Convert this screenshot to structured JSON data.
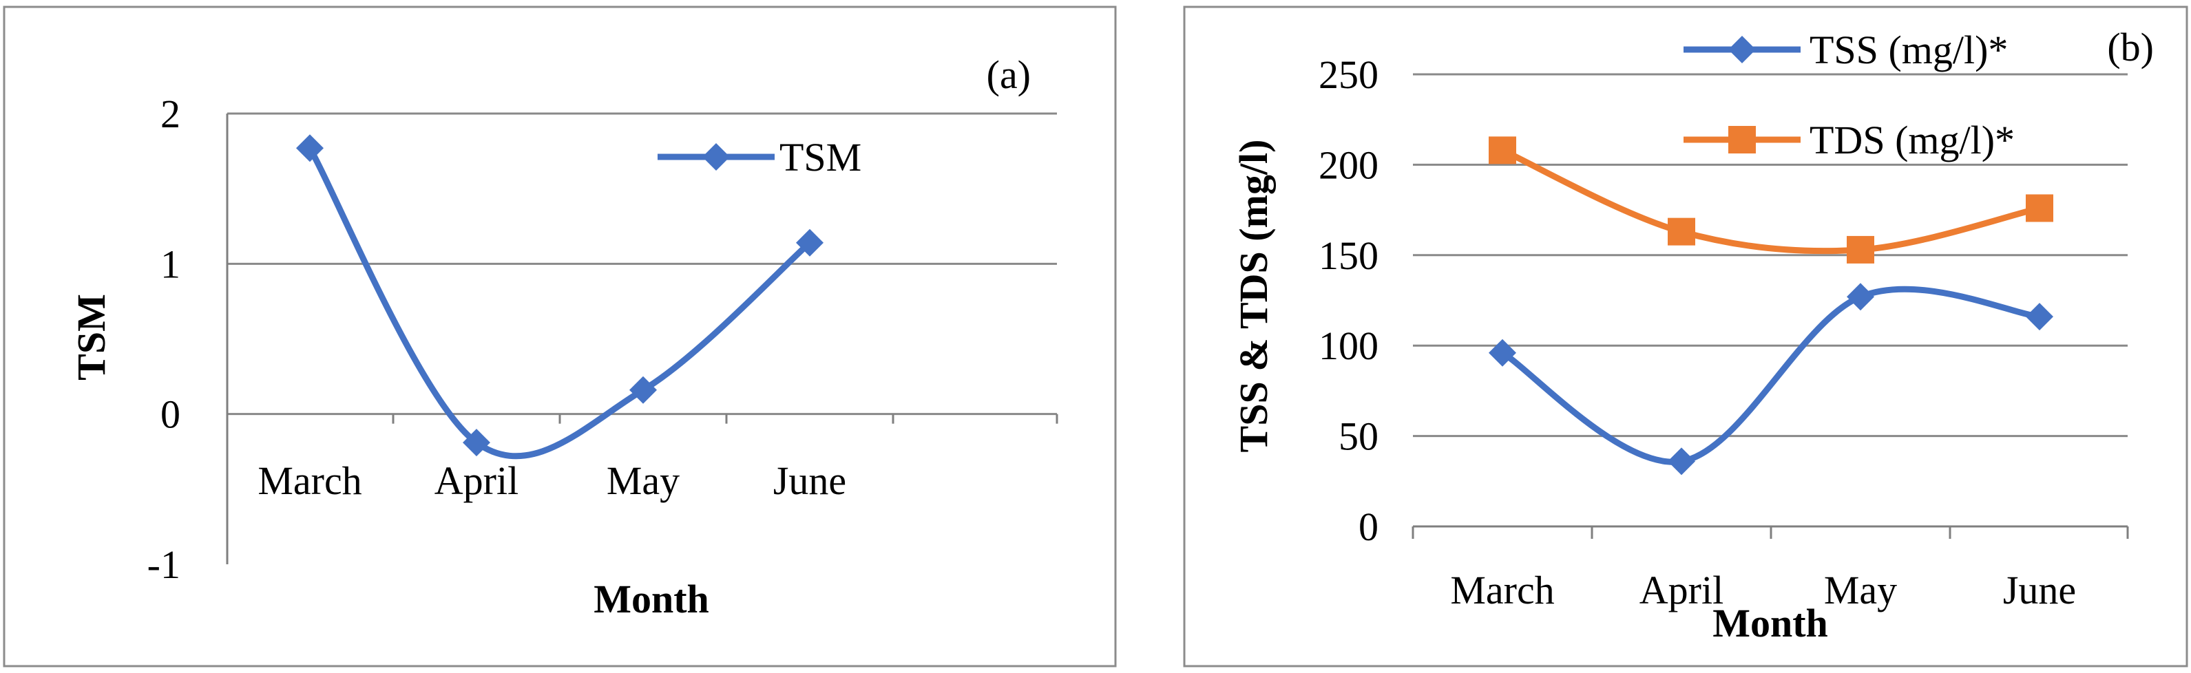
{
  "chart_data": [
    {
      "type": "line",
      "panel_label": "(a)",
      "xlabel": "Month",
      "ylabel": "TSM",
      "categories": [
        "March",
        "April",
        "May",
        "June"
      ],
      "ylim": [
        -1,
        2
      ],
      "yticks": [
        "-1",
        "0",
        "1",
        "2"
      ],
      "grid": true,
      "legend_position": "top-right",
      "series": [
        {
          "name": "TSM",
          "values": [
            1.77,
            -0.19,
            0.16,
            1.14
          ],
          "color": "#4472c4",
          "marker": "diamond"
        }
      ]
    },
    {
      "type": "line",
      "panel_label": "(b)",
      "xlabel": "Month",
      "ylabel": "TSS & TDS (mg/l)",
      "categories": [
        "March",
        "April",
        "May",
        "June"
      ],
      "ylim": [
        0,
        250
      ],
      "yticks": [
        "0",
        "50",
        "100",
        "150",
        "200",
        "250"
      ],
      "grid": true,
      "legend_position": "top-right",
      "series": [
        {
          "name": "TSS (mg/l)*",
          "values": [
            96,
            36,
            127,
            116
          ],
          "color": "#4472c4",
          "marker": "diamond"
        },
        {
          "name": "TDS (mg/l)*",
          "values": [
            208,
            163,
            153,
            176
          ],
          "color": "#ed7d31",
          "marker": "square"
        }
      ]
    }
  ]
}
